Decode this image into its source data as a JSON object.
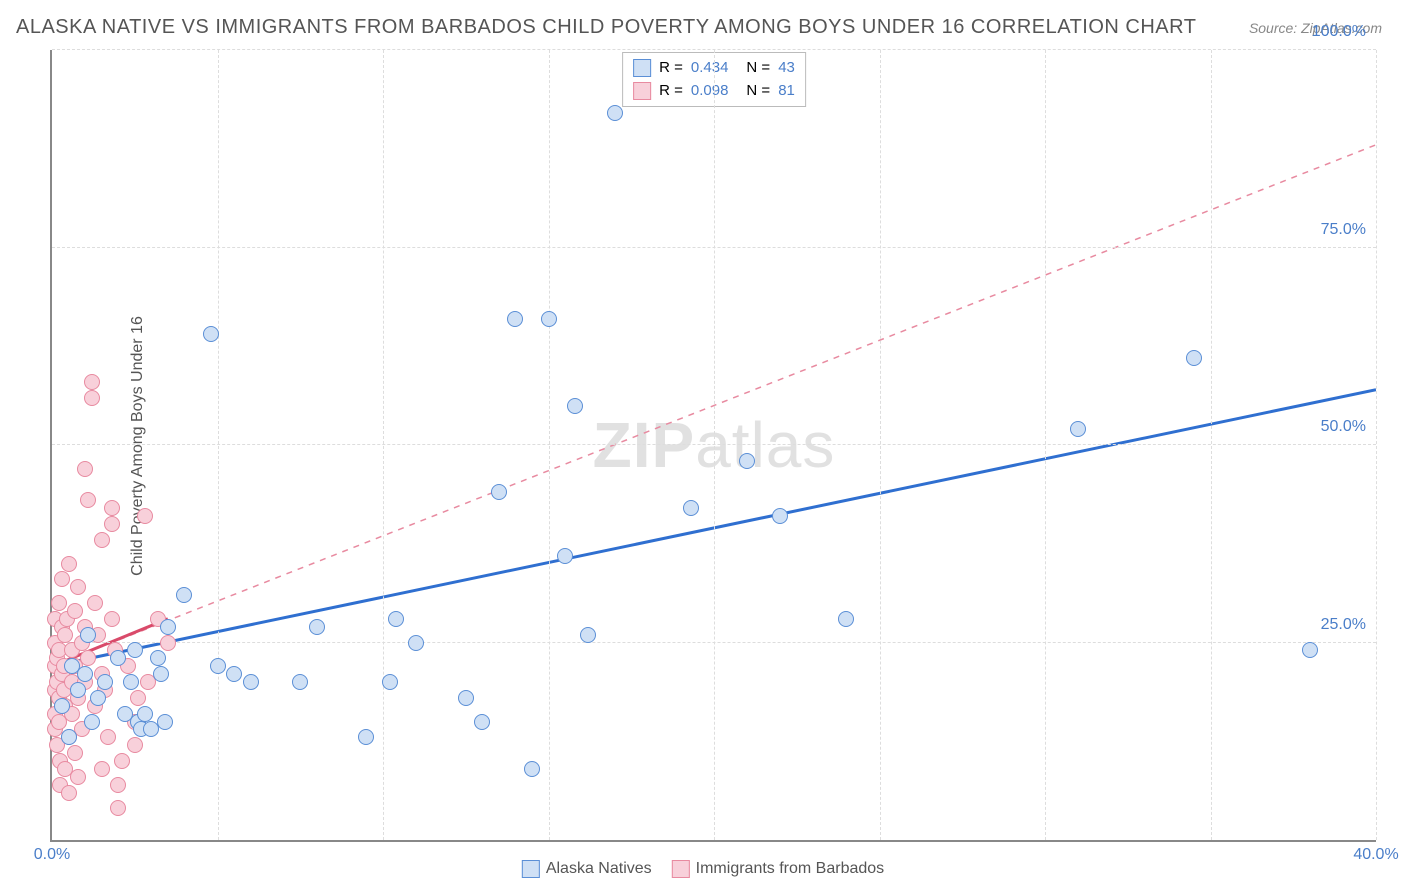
{
  "title": "ALASKA NATIVE VS IMMIGRANTS FROM BARBADOS CHILD POVERTY AMONG BOYS UNDER 16 CORRELATION CHART",
  "source": "Source: ZipAtlas.com",
  "y_axis_label": "Child Poverty Among Boys Under 16",
  "watermark": {
    "part1": "ZIP",
    "part2": "atlas"
  },
  "chart": {
    "type": "scatter",
    "xlim": [
      0,
      40
    ],
    "ylim": [
      0,
      100
    ],
    "x_ticks": [
      0,
      40
    ],
    "y_ticks": [
      25,
      50,
      75,
      100
    ],
    "x_tick_labels": [
      "0.0%",
      "40.0%"
    ],
    "y_tick_labels": [
      "25.0%",
      "50.0%",
      "75.0%",
      "100.0%"
    ],
    "grid_h": [
      25,
      50,
      75,
      100
    ],
    "grid_v": [
      5,
      10,
      15,
      20,
      25,
      30,
      35,
      40
    ],
    "grid_color": "#dddddd",
    "axis_color": "#888888",
    "background_color": "#ffffff",
    "tick_color": "#4a7ec9",
    "point_radius": 8,
    "series": [
      {
        "name": "Alaska Natives",
        "fill": "#cfe0f5",
        "stroke": "#5b8fd6",
        "R": "0.434",
        "N": "43",
        "trend": {
          "x1": 0,
          "y1": 22,
          "x2": 40,
          "y2": 57,
          "stroke": "#2f6fd0",
          "width": 3,
          "dash": "none"
        },
        "short_trend": null,
        "points": [
          [
            0.3,
            17
          ],
          [
            0.5,
            13
          ],
          [
            0.6,
            22
          ],
          [
            0.8,
            19
          ],
          [
            1.0,
            21
          ],
          [
            1.1,
            26
          ],
          [
            1.2,
            15
          ],
          [
            1.4,
            18
          ],
          [
            1.6,
            20
          ],
          [
            2.0,
            23
          ],
          [
            2.2,
            16
          ],
          [
            2.4,
            20
          ],
          [
            2.5,
            24
          ],
          [
            2.6,
            15
          ],
          [
            2.7,
            14
          ],
          [
            2.8,
            16
          ],
          [
            3.0,
            14
          ],
          [
            3.2,
            23
          ],
          [
            3.3,
            21
          ],
          [
            3.4,
            15
          ],
          [
            3.5,
            27
          ],
          [
            4.0,
            31
          ],
          [
            4.8,
            64
          ],
          [
            5.0,
            22
          ],
          [
            5.5,
            21
          ],
          [
            6.0,
            20
          ],
          [
            7.5,
            20
          ],
          [
            8.0,
            27
          ],
          [
            9.5,
            13
          ],
          [
            10.2,
            20
          ],
          [
            10.4,
            28
          ],
          [
            11.0,
            25
          ],
          [
            12.5,
            18
          ],
          [
            13.0,
            15
          ],
          [
            13.5,
            44
          ],
          [
            14.0,
            66
          ],
          [
            14.5,
            9
          ],
          [
            15.0,
            66
          ],
          [
            15.5,
            36
          ],
          [
            15.8,
            55
          ],
          [
            16.2,
            26
          ],
          [
            17.0,
            92
          ],
          [
            19.3,
            42
          ],
          [
            21.0,
            48
          ],
          [
            22.0,
            41
          ],
          [
            24.0,
            28
          ],
          [
            31.0,
            52
          ],
          [
            34.5,
            61
          ],
          [
            38.0,
            24
          ]
        ]
      },
      {
        "name": "Immigrants from Barbados",
        "fill": "#f8d0da",
        "stroke": "#e88aa0",
        "R": "0.098",
        "N": "81",
        "trend": {
          "x1": 0,
          "y1": 22,
          "x2": 40,
          "y2": 88,
          "stroke": "#e88aa0",
          "width": 1.5,
          "dash": "6,6"
        },
        "short_trend": {
          "x1": 0,
          "y1": 22,
          "x2": 3.5,
          "y2": 28,
          "stroke": "#d94a6a",
          "width": 3
        },
        "points": [
          [
            0.1,
            22
          ],
          [
            0.1,
            19
          ],
          [
            0.1,
            25
          ],
          [
            0.1,
            16
          ],
          [
            0.1,
            14
          ],
          [
            0.1,
            28
          ],
          [
            0.15,
            20
          ],
          [
            0.15,
            23
          ],
          [
            0.15,
            12
          ],
          [
            0.2,
            30
          ],
          [
            0.2,
            18
          ],
          [
            0.2,
            15
          ],
          [
            0.2,
            24
          ],
          [
            0.25,
            7
          ],
          [
            0.25,
            10
          ],
          [
            0.3,
            21
          ],
          [
            0.3,
            27
          ],
          [
            0.3,
            33
          ],
          [
            0.35,
            19
          ],
          [
            0.35,
            22
          ],
          [
            0.4,
            26
          ],
          [
            0.4,
            9
          ],
          [
            0.4,
            17
          ],
          [
            0.45,
            28
          ],
          [
            0.5,
            13
          ],
          [
            0.5,
            35
          ],
          [
            0.5,
            6
          ],
          [
            0.6,
            20
          ],
          [
            0.6,
            24
          ],
          [
            0.6,
            16
          ],
          [
            0.7,
            29
          ],
          [
            0.7,
            11
          ],
          [
            0.7,
            22
          ],
          [
            0.8,
            8
          ],
          [
            0.8,
            32
          ],
          [
            0.8,
            18
          ],
          [
            0.9,
            25
          ],
          [
            0.9,
            14
          ],
          [
            1.0,
            47
          ],
          [
            1.0,
            20
          ],
          [
            1.0,
            27
          ],
          [
            1.1,
            43
          ],
          [
            1.1,
            23
          ],
          [
            1.2,
            58
          ],
          [
            1.2,
            56
          ],
          [
            1.3,
            17
          ],
          [
            1.3,
            30
          ],
          [
            1.4,
            26
          ],
          [
            1.5,
            38
          ],
          [
            1.5,
            21
          ],
          [
            1.5,
            9
          ],
          [
            1.6,
            19
          ],
          [
            1.7,
            13
          ],
          [
            1.8,
            28
          ],
          [
            1.8,
            40
          ],
          [
            1.8,
            42
          ],
          [
            1.9,
            24
          ],
          [
            2.0,
            4
          ],
          [
            2.0,
            7
          ],
          [
            2.1,
            10
          ],
          [
            2.3,
            22
          ],
          [
            2.5,
            15
          ],
          [
            2.5,
            12
          ],
          [
            2.6,
            18
          ],
          [
            2.8,
            41
          ],
          [
            2.9,
            20
          ],
          [
            3.2,
            28
          ],
          [
            3.5,
            25
          ]
        ]
      }
    ]
  },
  "legend_top": {
    "r_label": "R =",
    "n_label": "N ="
  },
  "legend_bottom": [
    "Alaska Natives",
    "Immigrants from Barbados"
  ]
}
